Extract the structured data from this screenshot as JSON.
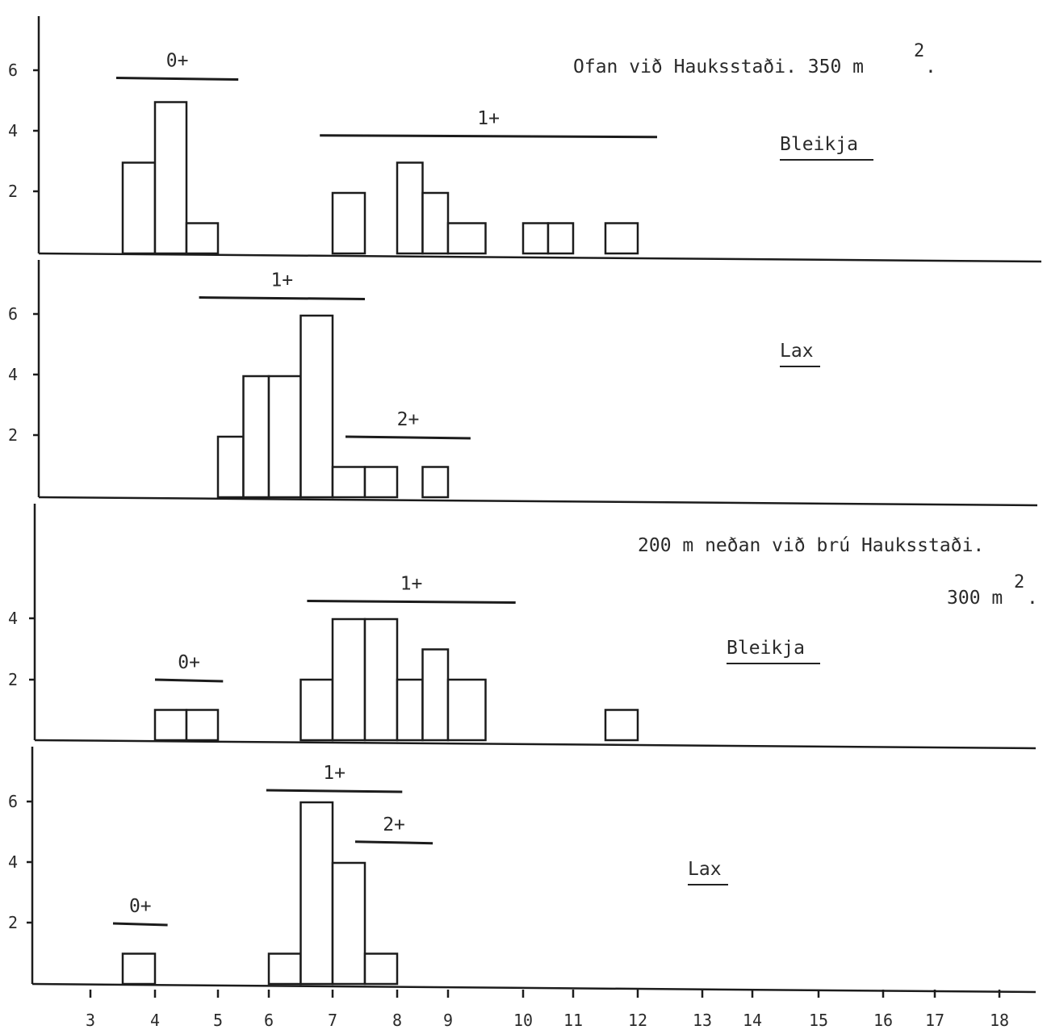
{
  "chart_data": [
    {
      "type": "bar",
      "header": "Ofan við Hauksstaði. 350 m",
      "header_sup": "2",
      "header_end": ".",
      "species": "Bleikja",
      "yticks": [
        "2",
        "4",
        "6"
      ],
      "ylim": [
        0,
        7
      ],
      "bars": [
        {
          "x": 3.75,
          "value": 3
        },
        {
          "x": 4.25,
          "value": 5
        },
        {
          "x": 4.75,
          "value": 1
        },
        {
          "x": 7.25,
          "value": 2
        },
        {
          "x": 8.25,
          "value": 3
        },
        {
          "x": 8.75,
          "value": 2
        },
        {
          "x": 9.25,
          "value": 1
        },
        {
          "x": 10.25,
          "value": 1
        },
        {
          "x": 10.75,
          "value": 1
        },
        {
          "x": 11.75,
          "value": 1
        }
      ],
      "cohorts": [
        {
          "label": "0+",
          "x0": 3.4,
          "x1": 5.4,
          "y": 5.8
        },
        {
          "label": "1+",
          "x0": 6.8,
          "x1": 12.3,
          "y": 3.9
        }
      ]
    },
    {
      "type": "bar",
      "species": "Lax",
      "yticks": [
        "2",
        "4",
        "6"
      ],
      "ylim": [
        0,
        7
      ],
      "bars": [
        {
          "x": 5.25,
          "value": 2
        },
        {
          "x": 5.75,
          "value": 4
        },
        {
          "x": 6.25,
          "value": 4
        },
        {
          "x": 6.75,
          "value": 6
        },
        {
          "x": 7.25,
          "value": 1
        },
        {
          "x": 7.75,
          "value": 1
        },
        {
          "x": 8.75,
          "value": 1
        }
      ],
      "cohorts": [
        {
          "label": "1+",
          "x0": 4.7,
          "x1": 7.5,
          "y": 6.6
        },
        {
          "label": "2+",
          "x0": 7.2,
          "x1": 9.3,
          "y": 2.0
        }
      ]
    },
    {
      "type": "bar",
      "header": "200 m neðan við brú Hauksstaði.",
      "header2": "300 m",
      "header2_sup": "2",
      "header2_end": ".",
      "species": "Bleikja",
      "yticks": [
        "2",
        "4"
      ],
      "ylim": [
        0,
        7
      ],
      "bars": [
        {
          "x": 4.25,
          "value": 1
        },
        {
          "x": 4.75,
          "value": 1
        },
        {
          "x": 6.75,
          "value": 2
        },
        {
          "x": 7.25,
          "value": 4
        },
        {
          "x": 7.75,
          "value": 4
        },
        {
          "x": 8.25,
          "value": 2
        },
        {
          "x": 8.75,
          "value": 3
        },
        {
          "x": 9.25,
          "value": 2
        },
        {
          "x": 11.75,
          "value": 1
        }
      ],
      "cohorts": [
        {
          "label": "0+",
          "x0": 4.0,
          "x1": 5.1,
          "y": 2.0
        },
        {
          "label": "1+",
          "x0": 6.6,
          "x1": 9.9,
          "y": 4.6
        }
      ]
    },
    {
      "type": "bar",
      "species": "Lax",
      "yticks": [
        "2",
        "4",
        "6"
      ],
      "ylim": [
        0,
        7
      ],
      "bars": [
        {
          "x": 3.75,
          "value": 1
        },
        {
          "x": 6.25,
          "value": 1
        },
        {
          "x": 6.75,
          "value": 6
        },
        {
          "x": 7.25,
          "value": 4
        },
        {
          "x": 7.75,
          "value": 1
        }
      ],
      "cohorts": [
        {
          "label": "0+",
          "x0": 3.35,
          "x1": 4.2,
          "y": 2.0
        },
        {
          "label": "1+",
          "x0": 5.95,
          "x1": 8.1,
          "y": 6.4
        },
        {
          "label": "2+",
          "x0": 7.35,
          "x1": 8.7,
          "y": 4.7
        }
      ]
    }
  ],
  "x_axis": {
    "ticks": [
      "3",
      "4",
      "5",
      "6",
      "7",
      "8",
      "9",
      "10",
      "11",
      "12",
      "13",
      "14",
      "15",
      "16",
      "17",
      "18"
    ]
  }
}
